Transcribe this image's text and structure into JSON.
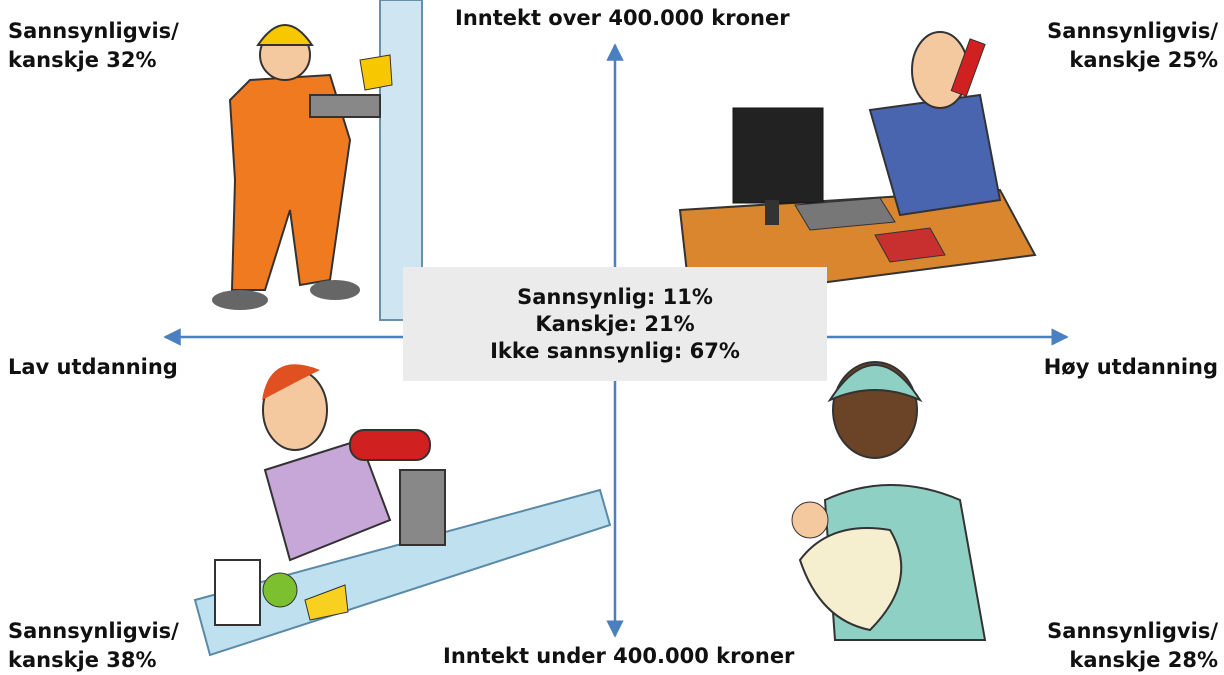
{
  "axes": {
    "top": "Inntekt over 400.000 kroner",
    "bottom": "Inntekt under 400.000 kroner",
    "left": "Lav utdanning",
    "right": "Høy utdanning"
  },
  "corners": {
    "top_left": [
      "Sannsynligvis/",
      "kanskje 32%"
    ],
    "top_right": [
      "Sannsynligvis/",
      "kanskje 25%"
    ],
    "bottom_left": [
      "Sannsynligvis/",
      "kanskje 38%"
    ],
    "bottom_right": [
      "Sannsynligvis/",
      "kanskje 28%"
    ]
  },
  "center": [
    "Sannsynlig: 11%",
    "Kanskje: 21%",
    "Ikke sannsynlig: 67%"
  ]
}
